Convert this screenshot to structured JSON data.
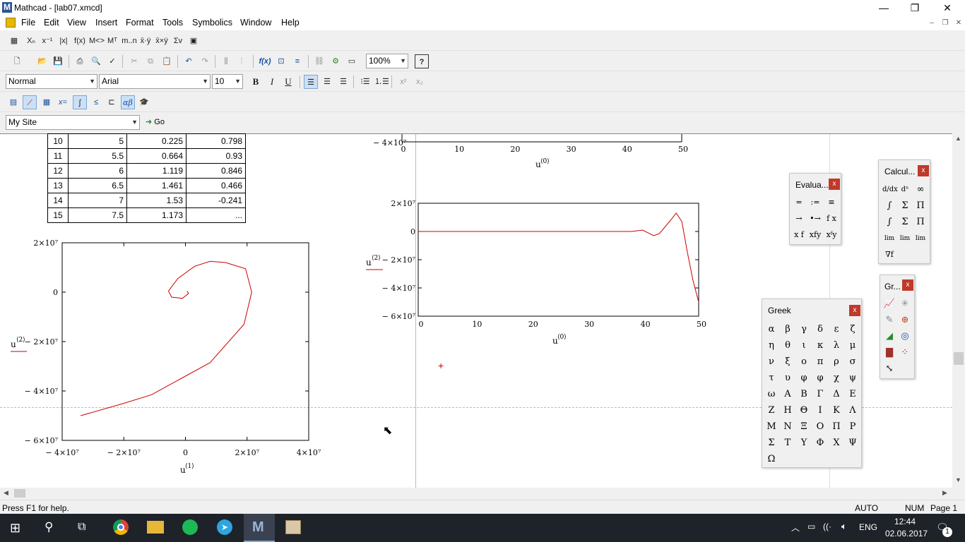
{
  "window": {
    "title": "Mathcad - [lab07.xmcd]",
    "minimize": "—",
    "restore": "❐",
    "close": "✕"
  },
  "menu": {
    "items": [
      "File",
      "Edit",
      "View",
      "Insert",
      "Format",
      "Tools",
      "Symbolics",
      "Window",
      "Help"
    ]
  },
  "toolbar_math": {
    "items": [
      "Xₙ",
      "x⁻¹",
      "|x|",
      "f(x)",
      "M<>",
      "Mᵀ",
      "m..n",
      "x̄·ÿ",
      "x̄×ÿ",
      "Σv"
    ]
  },
  "toolbar_std": {
    "zoom": "100%",
    "help": "?"
  },
  "format_bar": {
    "style": "Normal",
    "font": "Arial",
    "size": "10",
    "bold": "B",
    "italic": "I",
    "underline": "U"
  },
  "resource_bar": {
    "site": "My Site",
    "go_label": "Go"
  },
  "table": {
    "rows": [
      [
        "10",
        "5",
        "0.225",
        "0.798"
      ],
      [
        "11",
        "5.5",
        "0.664",
        "0.93"
      ],
      [
        "12",
        "6",
        "1.119",
        "0.846"
      ],
      [
        "13",
        "6.5",
        "1.461",
        "0.466"
      ],
      [
        "14",
        "7",
        "1.53",
        "-0.241"
      ],
      [
        "15",
        "7.5",
        "1.173",
        "..."
      ]
    ]
  },
  "plot_spiral": {
    "ylabel": "u",
    "ylabel_sup": "⟨2⟩",
    "xlabel": "u",
    "xlabel_sup": "⟨1⟩",
    "yticks": [
      "2×10⁷",
      "0",
      "− 2×10⁷",
      "− 4×10⁷",
      "− 6×10⁷"
    ],
    "xticks": [
      "− 4×10⁷",
      "− 2×10⁷",
      "0",
      "2×10⁷",
      "4×10⁷"
    ],
    "trace_color": "#cc0000"
  },
  "plot_top": {
    "ytick": "− 4×10⁷",
    "xticks": [
      "0",
      "10",
      "20",
      "30",
      "40",
      "50"
    ],
    "xlabel": "u",
    "xlabel_sup": "⟨0⟩"
  },
  "plot_time": {
    "ylabel": "u",
    "ylabel_sup": "⟨2⟩",
    "xlabel": "u",
    "xlabel_sup": "⟨0⟩",
    "yticks": [
      "2×10⁷",
      "0",
      "− 2×10⁷",
      "− 4×10⁷",
      "− 6×10⁷"
    ],
    "xticks": [
      "0",
      "10",
      "20",
      "30",
      "40",
      "50"
    ]
  },
  "panels": {
    "evaluation": {
      "title": "Evalua...",
      "close": "x",
      "items": [
        "=",
        ":=",
        "≡",
        "→",
        "•→",
        "f x",
        "x f",
        "xfy",
        "xᶠy"
      ]
    },
    "calculus": {
      "title": "Calcul...",
      "close": "x"
    },
    "graph": {
      "title": "Gr...",
      "close": "x"
    },
    "greek": {
      "title": "Greek",
      "close": "x",
      "letters": [
        "α",
        "β",
        "γ",
        "δ",
        "ε",
        "ζ",
        "η",
        "θ",
        "ι",
        "κ",
        "λ",
        "μ",
        "ν",
        "ξ",
        "ο",
        "π",
        "ρ",
        "σ",
        "τ",
        "υ",
        "φ",
        "φ",
        "χ",
        "ψ",
        "ω",
        "Α",
        "Β",
        "Γ",
        "Δ",
        "Ε",
        "Ζ",
        "Η",
        "Θ",
        "Ι",
        "Κ",
        "Λ",
        "Μ",
        "Ν",
        "Ξ",
        "Ο",
        "Π",
        "Ρ",
        "Σ",
        "Τ",
        "Υ",
        "Φ",
        "Χ",
        "Ψ",
        "Ω"
      ]
    }
  },
  "status": {
    "help": "Press F1 for help.",
    "mode": "AUTO",
    "num": "NUM",
    "page": "Page 1"
  },
  "taskbar": {
    "lang": "ENG",
    "time": "12:44",
    "date": "02.06.2017",
    "notif_count": "1"
  }
}
